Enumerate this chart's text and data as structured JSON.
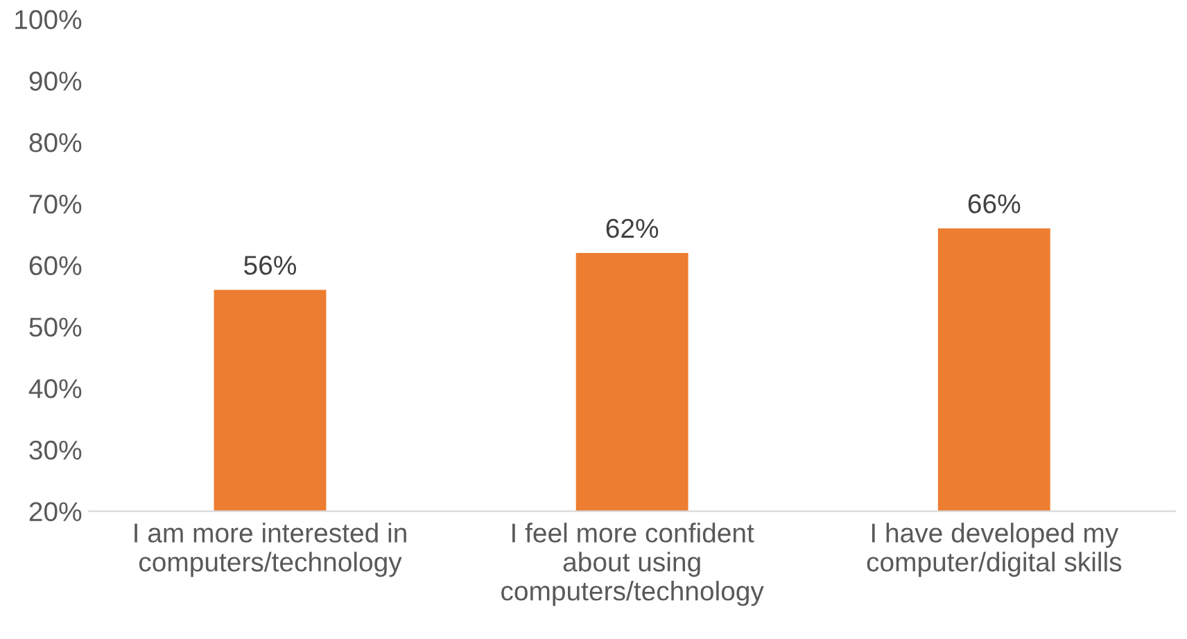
{
  "chart_data": {
    "type": "bar",
    "categories": [
      "I am more interested in\ncomputers/technology",
      "I feel more confident\nabout using\ncomputers/technology",
      "I have developed my\ncomputer/digital skills"
    ],
    "values": [
      56,
      62,
      66
    ],
    "value_labels": [
      "56%",
      "62%",
      "66%"
    ],
    "color": "#ed7d31",
    "ylim": [
      20,
      100
    ],
    "yticks": [
      {
        "value": 20,
        "label": "20%"
      },
      {
        "value": 30,
        "label": "30%"
      },
      {
        "value": 40,
        "label": "40%"
      },
      {
        "value": 50,
        "label": "50%"
      },
      {
        "value": 60,
        "label": "60%"
      },
      {
        "value": 70,
        "label": "70%"
      },
      {
        "value": 80,
        "label": "80%"
      },
      {
        "value": 90,
        "label": "90%"
      },
      {
        "value": 100,
        "label": "100%"
      }
    ],
    "grid": false,
    "legend": false
  }
}
